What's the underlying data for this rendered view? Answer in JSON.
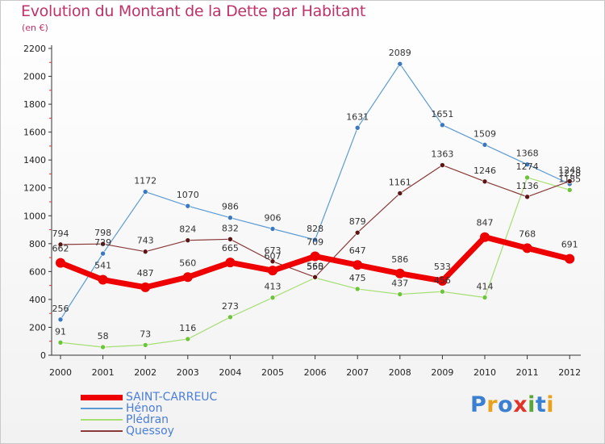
{
  "header": {
    "title": "Evolution du Montant de la Dette par Habitant",
    "subtitle": "(en €)"
  },
  "logo": {
    "text": "Proxiti",
    "letter_colors": [
      "#3a7fd0",
      "#e8a21e",
      "#3a7fd0",
      "#e0342a",
      "#5aa63a",
      "#3a7fd0",
      "#e8a21e"
    ]
  },
  "chart_data": {
    "type": "line",
    "title": "Evolution du Montant de la Dette par Habitant",
    "subtitle": "(en €)",
    "x": [
      2000,
      2001,
      2002,
      2003,
      2004,
      2005,
      2006,
      2007,
      2008,
      2009,
      2010,
      2011,
      2012
    ],
    "ylim": [
      0,
      2200
    ],
    "y_ticks": [
      0,
      200,
      400,
      600,
      800,
      1000,
      1200,
      1400,
      1600,
      1800,
      2000,
      2200
    ],
    "grid": false,
    "legend_position": "bottom-left",
    "series": [
      {
        "name": "Hénon",
        "color": "#5b9bd5",
        "point_color": "#3a78c0",
        "width": 1.2,
        "values": [
          256,
          729,
          1172,
          1070,
          986,
          906,
          828,
          1631,
          2089,
          1651,
          1509,
          1368,
          1228
        ]
      },
      {
        "name": "Plédran",
        "color": "#a6df74",
        "point_color": "#6cc43a",
        "width": 1.2,
        "values": [
          91,
          58,
          73,
          116,
          273,
          413,
          555,
          475,
          437,
          456,
          414,
          1274,
          1185
        ]
      },
      {
        "name": "Quessoy",
        "color": "#8a3a3a",
        "point_color": "#5c1414",
        "width": 1.2,
        "values": [
          794,
          798,
          743,
          824,
          832,
          673,
          560,
          879,
          1161,
          1363,
          1246,
          1136,
          1248
        ]
      },
      {
        "name": "SAINT-CARREUC",
        "color": "#ee0000",
        "point_color": "#ee0000",
        "width": 7,
        "values": [
          662,
          541,
          487,
          560,
          665,
          607,
          709,
          647,
          586,
          533,
          847,
          768,
          691
        ]
      }
    ],
    "data_labels": [
      {
        "series": "Hénon",
        "labels": [
          "256",
          "729",
          "1172",
          "1070",
          "986",
          "906",
          "828",
          "1631",
          "2089",
          "1651",
          "1509",
          "1368",
          "1228"
        ]
      },
      {
        "series": "Plédran",
        "labels": [
          "91",
          "58",
          "73",
          "116",
          "273",
          "413",
          "555",
          "475",
          "437",
          "456",
          "414",
          "1274",
          "1185"
        ]
      },
      {
        "series": "Quessoy",
        "labels": [
          "794",
          "798",
          "743",
          "824",
          "832",
          "673",
          "560",
          "879",
          "1161",
          "1363",
          "1246",
          "1136",
          "1248"
        ]
      },
      {
        "series": "SAINT-CARREUC",
        "labels": [
          "662",
          "541",
          "487",
          "560",
          "665",
          "607",
          "709",
          "647",
          "586",
          "533",
          "847",
          "768",
          "691"
        ]
      }
    ]
  },
  "legend": [
    {
      "name": "SAINT-CARREUC",
      "color": "#ee0000",
      "thickness": 7
    },
    {
      "name": "Hénon",
      "color": "#5b9bd5",
      "thickness": 2
    },
    {
      "name": "Plédran",
      "color": "#a6df74",
      "thickness": 2
    },
    {
      "name": "Quessoy",
      "color": "#8a3a3a",
      "thickness": 2
    }
  ]
}
